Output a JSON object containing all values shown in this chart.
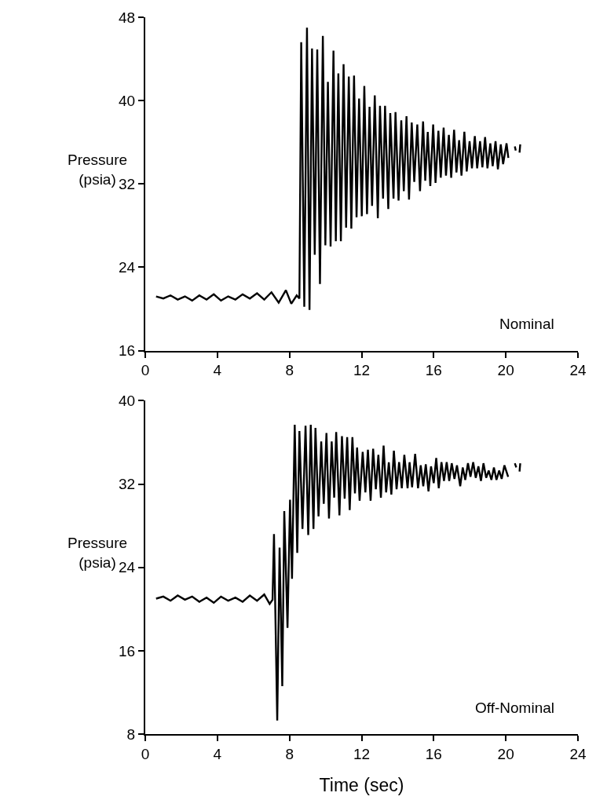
{
  "chart_data": [
    {
      "type": "line",
      "ylabel": "Pressure\n(psia)",
      "annotations": [
        "Nominal"
      ],
      "xlim": [
        0,
        24
      ],
      "xticks": [
        0,
        4,
        8,
        12,
        16,
        20,
        24
      ],
      "ylim": [
        16,
        48
      ],
      "yticks": [
        16,
        24,
        32,
        40,
        48
      ],
      "marker": "none",
      "line_style": "solid",
      "series": [
        {
          "color": "#000000",
          "x": [
            0.6,
            1.0,
            1.4,
            1.8,
            2.2,
            2.6,
            3.0,
            3.4,
            3.8,
            4.2,
            4.6,
            5.0,
            5.4,
            5.8,
            6.2,
            6.6,
            7.0,
            7.4,
            7.8,
            8.1,
            8.4,
            8.55,
            8.65,
            8.82,
            8.97,
            9.11,
            9.25,
            9.4,
            9.54,
            9.69,
            9.85,
            9.99,
            10.13,
            10.28,
            10.44,
            10.57,
            10.71,
            10.85,
            11.0,
            11.14,
            11.29,
            11.43,
            11.58,
            11.72,
            11.86,
            12.01,
            12.15,
            12.3,
            12.44,
            12.58,
            12.73,
            12.9,
            13.02,
            13.19,
            13.3,
            13.48,
            13.59,
            13.77,
            13.88,
            14.05,
            14.2,
            14.34,
            14.49,
            14.63,
            14.78,
            14.92,
            15.09,
            15.24,
            15.41,
            15.53,
            15.67,
            15.81,
            15.97,
            16.1,
            16.26,
            16.39,
            16.55,
            16.68,
            16.84,
            16.97,
            17.13,
            17.26,
            17.41,
            17.54,
            17.7,
            17.83,
            17.99,
            18.12,
            18.28,
            18.41,
            18.57,
            18.7,
            18.85,
            18.98,
            19.14,
            19.27,
            19.43,
            19.56,
            19.72,
            19.85,
            20.04,
            20.14,
            20.3,
            20.5,
            20.55,
            20.65,
            20.76,
            20.8
          ],
          "values": [
            21.2,
            21.0,
            21.3,
            20.9,
            21.2,
            20.8,
            21.3,
            20.9,
            21.4,
            20.8,
            21.2,
            20.9,
            21.4,
            21.0,
            21.5,
            20.9,
            21.6,
            20.6,
            21.8,
            20.5,
            21.3,
            21.0,
            45.6,
            20.2,
            47.0,
            19.9,
            45.0,
            25.2,
            44.9,
            22.4,
            46.2,
            26.1,
            41.8,
            26.0,
            44.8,
            26.5,
            42.6,
            26.5,
            43.5,
            27.8,
            42.3,
            27.7,
            42.4,
            28.8,
            40.2,
            28.9,
            41.4,
            29.1,
            39.4,
            29.9,
            40.5,
            28.7,
            39.5,
            30.6,
            39.5,
            29.6,
            38.8,
            30.6,
            38.9,
            30.4,
            38.1,
            31.3,
            38.5,
            30.5,
            37.9,
            32.2,
            37.7,
            31.3,
            38.0,
            32.3,
            37.0,
            31.8,
            37.7,
            32.1,
            37.1,
            32.6,
            37.4,
            32.8,
            36.7,
            32.6,
            37.2,
            33.1,
            36.2,
            32.8,
            37.0,
            33.2,
            36.1,
            33.5,
            36.6,
            33.5,
            36.1,
            33.6,
            36.5,
            33.5,
            35.9,
            33.7,
            36.1,
            33.4,
            35.8,
            33.9,
            35.9,
            34.5,
            null,
            35.6,
            35.2,
            null,
            35.0,
            35.8
          ]
        }
      ]
    },
    {
      "type": "line",
      "ylabel": "Pressure\n(psia)",
      "xlabel": "Time (sec)",
      "annotations": [
        "Off-Nominal"
      ],
      "xlim": [
        0,
        24
      ],
      "xticks": [
        0,
        4,
        8,
        12,
        16,
        20,
        24
      ],
      "ylim": [
        8,
        40
      ],
      "yticks": [
        8,
        16,
        24,
        32,
        40
      ],
      "marker": "none",
      "line_style": "solid",
      "series": [
        {
          "color": "#000000",
          "x": [
            0.6,
            1.0,
            1.4,
            1.8,
            2.2,
            2.6,
            3.0,
            3.4,
            3.8,
            4.2,
            4.6,
            5.0,
            5.4,
            5.8,
            6.2,
            6.6,
            6.9,
            7.06,
            7.14,
            7.32,
            7.45,
            7.6,
            7.71,
            7.89,
            8.03,
            8.14,
            8.29,
            8.43,
            8.55,
            8.72,
            8.89,
            9.04,
            9.18,
            9.33,
            9.44,
            9.61,
            9.76,
            9.9,
            10.05,
            10.19,
            10.34,
            10.48,
            10.59,
            10.77,
            10.91,
            11.06,
            11.2,
            11.34,
            11.49,
            11.63,
            11.75,
            11.89,
            12.06,
            12.21,
            12.35,
            12.5,
            12.64,
            12.79,
            12.93,
            13.07,
            13.22,
            13.36,
            13.51,
            13.65,
            13.79,
            13.94,
            14.08,
            14.23,
            14.37,
            14.55,
            14.66,
            14.8,
            14.97,
            15.13,
            15.28,
            15.42,
            15.56,
            15.71,
            15.85,
            16.0,
            16.14,
            16.28,
            16.43,
            16.57,
            16.72,
            16.86,
            17.0,
            17.15,
            17.29,
            17.47,
            17.61,
            17.75,
            17.9,
            18.04,
            18.19,
            18.33,
            18.48,
            18.62,
            18.76,
            18.91,
            19.05,
            19.2,
            19.34,
            19.48,
            19.63,
            19.77,
            19.92,
            20.13,
            20.3,
            20.5,
            20.58,
            20.65,
            20.76,
            20.8
          ],
          "values": [
            21.0,
            21.2,
            20.8,
            21.3,
            20.9,
            21.2,
            20.7,
            21.1,
            20.6,
            21.2,
            20.8,
            21.1,
            20.7,
            21.3,
            20.8,
            21.4,
            20.5,
            20.9,
            27.2,
            9.3,
            25.9,
            12.6,
            29.4,
            18.2,
            30.5,
            22.9,
            37.7,
            25.4,
            37.1,
            27.7,
            37.6,
            27.1,
            37.7,
            27.7,
            37.4,
            28.9,
            36.1,
            30.1,
            36.9,
            28.7,
            36.1,
            30.7,
            37.0,
            29.0,
            36.6,
            30.6,
            36.5,
            29.5,
            36.5,
            31.1,
            35.5,
            30.4,
            35.1,
            31.2,
            35.3,
            30.4,
            35.4,
            31.5,
            34.8,
            30.7,
            35.7,
            31.2,
            34.1,
            31.0,
            35.2,
            31.5,
            34.1,
            31.6,
            34.8,
            31.6,
            34.1,
            31.7,
            34.9,
            31.6,
            33.8,
            31.8,
            33.9,
            31.3,
            33.7,
            32.1,
            34.5,
            31.6,
            34.1,
            32.3,
            34.1,
            32.3,
            34.0,
            32.5,
            33.8,
            31.8,
            33.6,
            32.4,
            34.0,
            32.7,
            34.1,
            32.6,
            33.7,
            32.3,
            34.0,
            32.6,
            33.3,
            32.4,
            33.6,
            32.4,
            33.3,
            32.5,
            33.8,
            32.7,
            null,
            34.0,
            33.6,
            null,
            33.2,
            34.0
          ]
        }
      ]
    }
  ]
}
